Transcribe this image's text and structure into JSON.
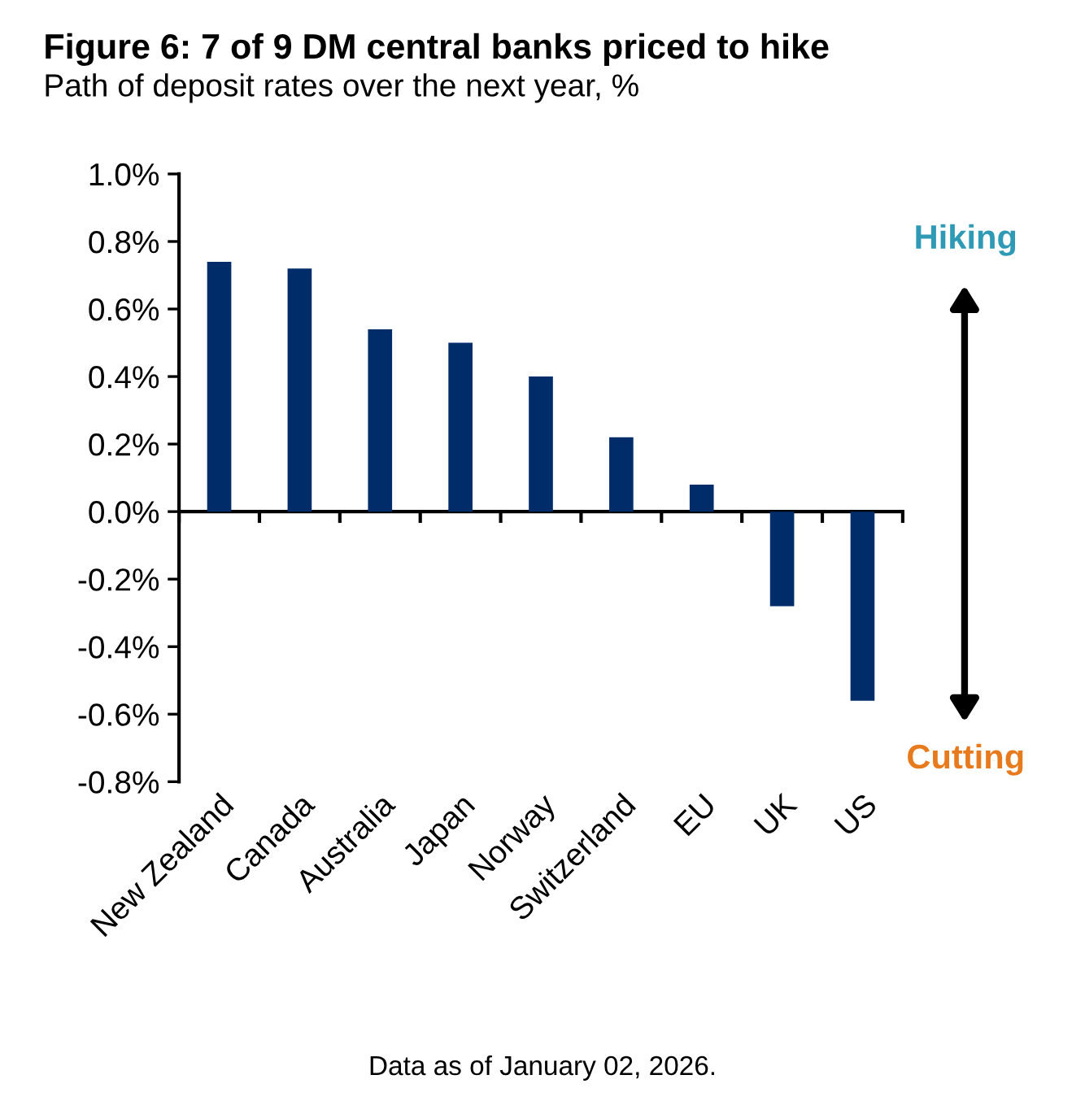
{
  "chart_data": {
    "type": "bar",
    "title": "Figure 6: 7 of 9 DM central banks priced to hike",
    "subtitle": "Path of deposit rates over the next year, %",
    "categories": [
      "New Zealand",
      "Canada",
      "Australia",
      "Japan",
      "Norway",
      "Switzerland",
      "EU",
      "UK",
      "US"
    ],
    "values": [
      0.74,
      0.72,
      0.54,
      0.5,
      0.4,
      0.22,
      0.08,
      -0.28,
      -0.56
    ],
    "color": "#002d6a",
    "ylim": [
      -0.8,
      1.0
    ],
    "yticks": [
      {
        "value": -0.8,
        "label": "-0.8%"
      },
      {
        "value": -0.6,
        "label": "-0.6%"
      },
      {
        "value": -0.4,
        "label": "-0.4%"
      },
      {
        "value": -0.2,
        "label": "-0.2%"
      },
      {
        "value": 0.0,
        "label": "0.0%"
      },
      {
        "value": 0.2,
        "label": "0.2%"
      },
      {
        "value": 0.4,
        "label": "0.4%"
      },
      {
        "value": 0.6,
        "label": "0.6%"
      },
      {
        "value": 0.8,
        "label": "0.8%"
      },
      {
        "value": 1.0,
        "label": "1.0%"
      }
    ],
    "legend": false,
    "annotations": [
      "Hiking",
      "Cutting",
      "Data as of January 02, 2026."
    ]
  }
}
